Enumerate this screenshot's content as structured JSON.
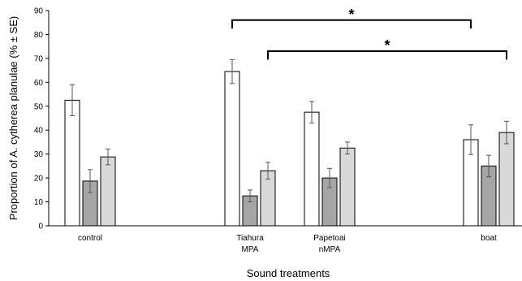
{
  "chart_data": {
    "type": "bar",
    "title": "",
    "xlabel": "Sound treatments",
    "ylabel": "Proportion of A. cytherea planulae (% ± SE)",
    "ylim": [
      0,
      90
    ],
    "yticks": [
      0,
      10,
      20,
      30,
      40,
      50,
      60,
      70,
      80,
      90
    ],
    "grid": false,
    "legend": "none",
    "series_colors": [
      "#ffffff",
      "#a6a6a6",
      "#d9d9d9"
    ],
    "groups": [
      {
        "label_lines": [
          "control"
        ],
        "values": [
          52.5,
          18.7,
          28.8
        ],
        "errors": [
          6.5,
          4.8,
          3.3
        ]
      },
      {
        "label_lines": [
          "Tiahura",
          "MPA"
        ],
        "values": [
          64.5,
          12.5,
          23.0
        ],
        "errors": [
          5.0,
          2.5,
          3.5
        ]
      },
      {
        "label_lines": [
          "Papetoai",
          "nMPA"
        ],
        "values": [
          47.5,
          20.0,
          32.5
        ],
        "errors": [
          4.5,
          4.0,
          2.5
        ]
      },
      {
        "label_lines": [
          "boat"
        ],
        "values": [
          36.0,
          25.0,
          39.0
        ],
        "errors": [
          6.2,
          4.5,
          4.7
        ]
      }
    ],
    "annotations": [
      {
        "text": "*",
        "from_group": 1,
        "from_bar": 0,
        "to_group": 3,
        "to_bar": 0,
        "level": 86
      },
      {
        "text": "*",
        "from_group": 1,
        "from_bar": 2,
        "to_group": 3,
        "to_bar": 2,
        "level": 73
      }
    ]
  }
}
